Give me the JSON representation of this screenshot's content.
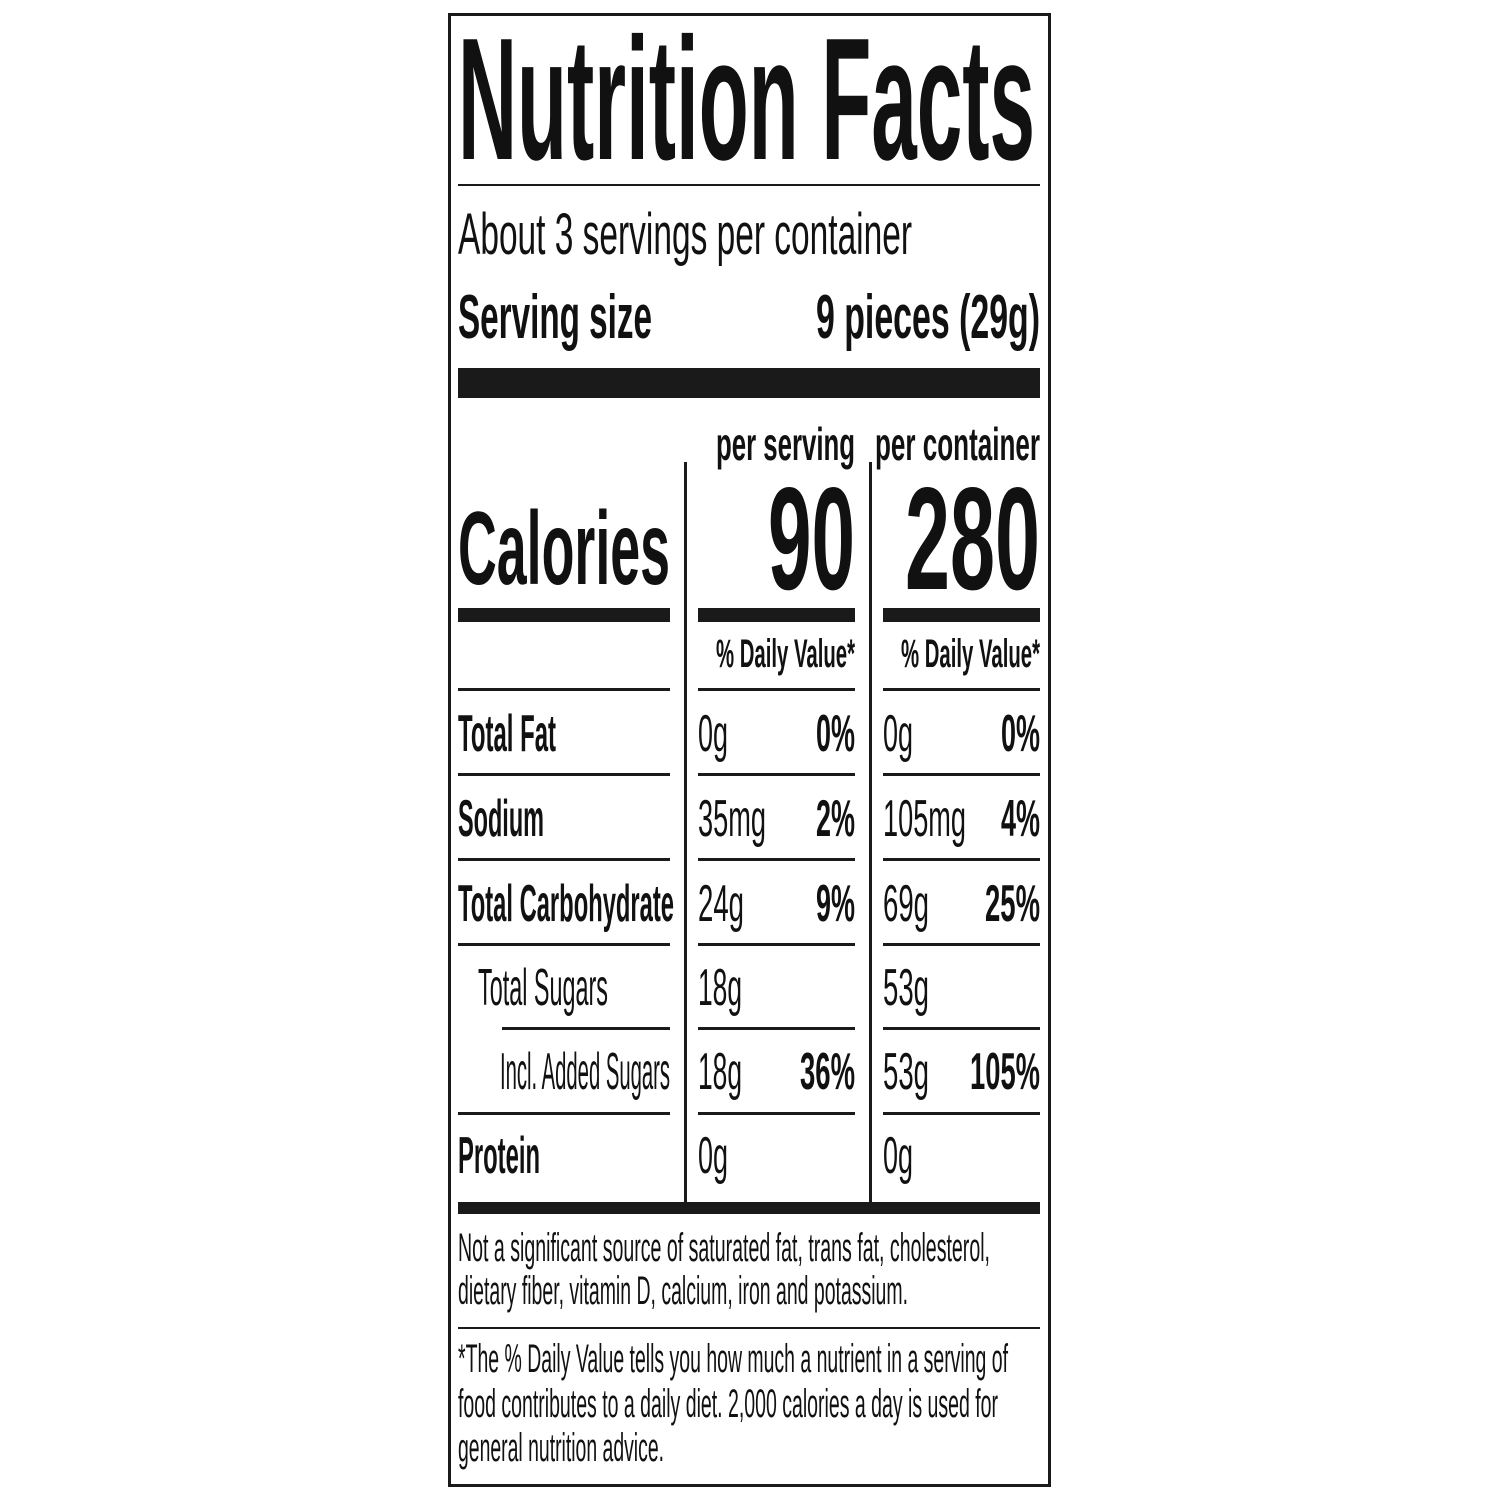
{
  "title": "Nutrition Facts",
  "servings_per_container": "About 3 servings per container",
  "serving_size": {
    "label": "Serving size",
    "value": "9 pieces (29g)"
  },
  "columns": {
    "per_serving": "per serving",
    "per_container": "per container"
  },
  "calories": {
    "label": "Calories",
    "per_serving": "90",
    "per_container": "280"
  },
  "daily_value_header": "% Daily Value*",
  "nutrients": [
    {
      "label": "Total Fat",
      "serving_amount": "0g",
      "serving_dv": "0%",
      "container_amount": "0g",
      "container_dv": "0%"
    },
    {
      "label": "Sodium",
      "serving_amount": "35mg",
      "serving_dv": "2%",
      "container_amount": "105mg",
      "container_dv": "4%"
    },
    {
      "label": "Total Carbohydrate",
      "serving_amount": "24g",
      "serving_dv": "9%",
      "container_amount": "69g",
      "container_dv": "25%"
    },
    {
      "label": "Total Sugars",
      "serving_amount": "18g",
      "serving_dv": "",
      "container_amount": "53g",
      "container_dv": ""
    },
    {
      "label": "Incl. Added Sugars",
      "serving_amount": "18g",
      "serving_dv": "36%",
      "container_amount": "53g",
      "container_dv": "105%"
    },
    {
      "label": "Protein",
      "serving_amount": "0g",
      "serving_dv": "",
      "container_amount": "0g",
      "container_dv": ""
    }
  ],
  "footnotes": {
    "not_significant": [
      "Not a significant source of saturated fat, trans fat, cholesterol,",
      "dietary fiber, vitamin D, calcium, iron and potassium."
    ],
    "daily_value": [
      "*The % Daily Value tells you how much a nutrient in a serving of",
      "food contributes to a daily diet. 2,000 calories a day is used for",
      "general nutrition advice."
    ]
  }
}
